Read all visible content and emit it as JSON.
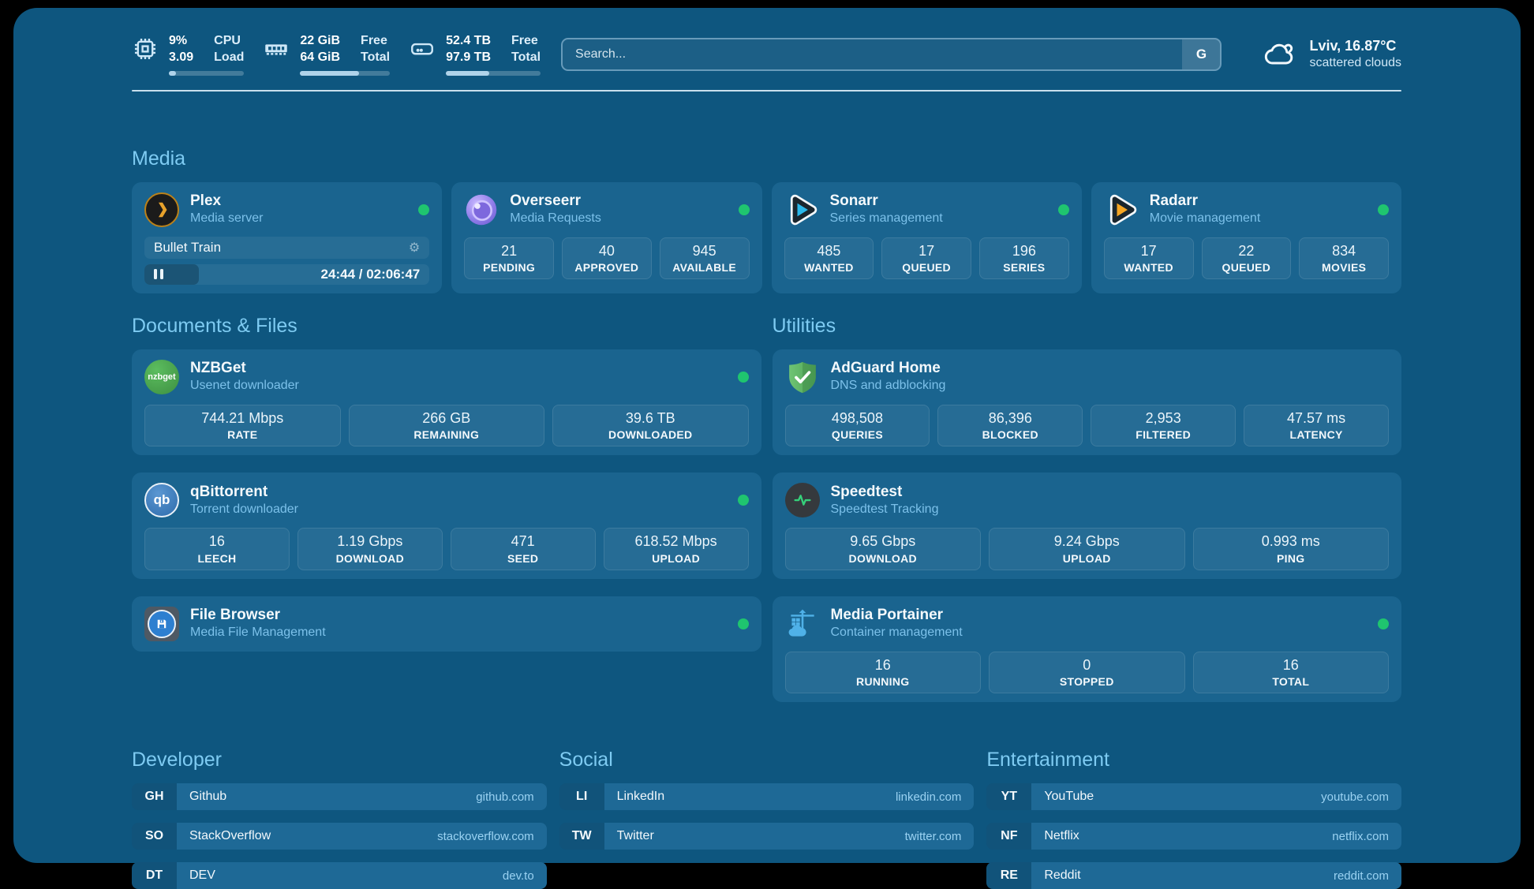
{
  "colors": {
    "panel_bg": "#0E567F",
    "card_bg": "#1A648F",
    "section_title": "#7ECBF2",
    "status_online": "#1FC56F",
    "link": "#9AD2F2"
  },
  "header": {
    "stats": [
      {
        "icon": "cpu-icon",
        "value_top": "9%",
        "value_bottom": "3.09",
        "label_top": "CPU",
        "label_bottom": "Load",
        "progress_pct": 9
      },
      {
        "icon": "ram-icon",
        "value_top": "22 GiB",
        "value_bottom": "64 GiB",
        "label_top": "Free",
        "label_bottom": "Total",
        "progress_pct": 66
      },
      {
        "icon": "disk-icon",
        "value_top": "52.4 TB",
        "value_bottom": "97.9 TB",
        "label_top": "Free",
        "label_bottom": "Total",
        "progress_pct": 46
      }
    ],
    "search": {
      "placeholder": "Search...",
      "button_label": "G"
    },
    "weather": {
      "icon": "cloud-icon",
      "location_temp": "Lviv, 16.87°C",
      "condition": "scattered clouds"
    }
  },
  "media": {
    "title": "Media",
    "plex": {
      "icon": "plex-icon",
      "name": "Plex",
      "desc": "Media server",
      "online": true,
      "now_playing": "Bullet Train",
      "session_icon": "gear-icon",
      "gear_glyph": "⚙",
      "player_icon": "pause-icon",
      "time": "24:44 / 02:06:47",
      "progress_pct": 19
    },
    "overseerr": {
      "icon": "overseerr-icon",
      "name": "Overseerr",
      "desc": "Media Requests",
      "online": true,
      "stats": [
        {
          "value": "21",
          "label": "PENDING"
        },
        {
          "value": "40",
          "label": "APPROVED"
        },
        {
          "value": "945",
          "label": "AVAILABLE"
        }
      ]
    },
    "sonarr": {
      "icon": "sonarr-icon",
      "name": "Sonarr",
      "desc": "Series management",
      "online": true,
      "stats": [
        {
          "value": "485",
          "label": "WANTED"
        },
        {
          "value": "17",
          "label": "QUEUED"
        },
        {
          "value": "196",
          "label": "SERIES"
        }
      ]
    },
    "radarr": {
      "icon": "radarr-icon",
      "name": "Radarr",
      "desc": "Movie management",
      "online": true,
      "stats": [
        {
          "value": "17",
          "label": "WANTED"
        },
        {
          "value": "22",
          "label": "QUEUED"
        },
        {
          "value": "834",
          "label": "MOVIES"
        }
      ]
    }
  },
  "documents": {
    "title": "Documents & Files",
    "nzbget": {
      "icon": "nzbget-icon",
      "icon_text": "nzbget",
      "name": "NZBGet",
      "desc": "Usenet downloader",
      "online": true,
      "stats": [
        {
          "value": "744.21 Mbps",
          "label": "RATE"
        },
        {
          "value": "266 GB",
          "label": "REMAINING"
        },
        {
          "value": "39.6 TB",
          "label": "DOWNLOADED"
        }
      ]
    },
    "qbittorrent": {
      "icon": "qbittorrent-icon",
      "icon_text": "qb",
      "name": "qBittorrent",
      "desc": "Torrent downloader",
      "online": true,
      "stats": [
        {
          "value": "16",
          "label": "LEECH"
        },
        {
          "value": "1.19 Gbps",
          "label": "DOWNLOAD"
        },
        {
          "value": "471",
          "label": "SEED"
        },
        {
          "value": "618.52 Mbps",
          "label": "UPLOAD"
        }
      ]
    },
    "filebrowser": {
      "icon": "filebrowser-icon",
      "name": "File Browser",
      "desc": "Media File Management",
      "online": true
    }
  },
  "utilities": {
    "title": "Utilities",
    "adguard": {
      "icon": "adguard-icon",
      "name": "AdGuard Home",
      "desc": "DNS and adblocking",
      "online": false,
      "stats": [
        {
          "value": "498,508",
          "label": "QUERIES"
        },
        {
          "value": "86,396",
          "label": "BLOCKED"
        },
        {
          "value": "2,953",
          "label": "FILTERED"
        },
        {
          "value": "47.57 ms",
          "label": "LATENCY"
        }
      ]
    },
    "speedtest": {
      "icon": "speedtest-icon",
      "name": "Speedtest",
      "desc": "Speedtest Tracking",
      "online": false,
      "stats": [
        {
          "value": "9.65 Gbps",
          "label": "DOWNLOAD"
        },
        {
          "value": "9.24 Gbps",
          "label": "UPLOAD"
        },
        {
          "value": "0.993 ms",
          "label": "PING"
        }
      ]
    },
    "portainer": {
      "icon": "portainer-icon",
      "name": "Media Portainer",
      "desc": "Container management",
      "online": true,
      "stats": [
        {
          "value": "16",
          "label": "RUNNING"
        },
        {
          "value": "0",
          "label": "STOPPED"
        },
        {
          "value": "16",
          "label": "TOTAL"
        }
      ]
    }
  },
  "bookmarks": [
    {
      "title": "Developer",
      "items": [
        {
          "abbr": "GH",
          "name": "Github",
          "url": "github.com"
        },
        {
          "abbr": "SO",
          "name": "StackOverflow",
          "url": "stackoverflow.com"
        },
        {
          "abbr": "DT",
          "name": "DEV",
          "url": "dev.to"
        }
      ]
    },
    {
      "title": "Social",
      "items": [
        {
          "abbr": "LI",
          "name": "LinkedIn",
          "url": "linkedin.com"
        },
        {
          "abbr": "TW",
          "name": "Twitter",
          "url": "twitter.com"
        }
      ]
    },
    {
      "title": "Entertainment",
      "items": [
        {
          "abbr": "YT",
          "name": "YouTube",
          "url": "youtube.com"
        },
        {
          "abbr": "NF",
          "name": "Netflix",
          "url": "netflix.com"
        },
        {
          "abbr": "RE",
          "name": "Reddit",
          "url": "reddit.com"
        }
      ]
    }
  ]
}
